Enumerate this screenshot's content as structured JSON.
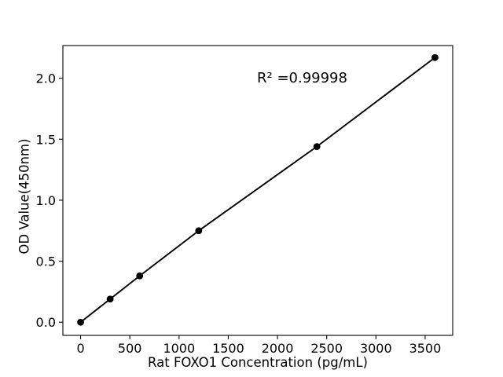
{
  "figure": {
    "background": "#ffffff",
    "line_color": "#000000",
    "marker_color": "#000000",
    "text_color": "#000000"
  },
  "chart_data": {
    "type": "line",
    "markers": true,
    "title": "",
    "xlabel": "Rat FOXO1 Concentration (pg/mL)",
    "ylabel": "OD Value(450nm)",
    "annotation": "R² =0.99998",
    "x": [
      0,
      300,
      600,
      1200,
      2400,
      3600
    ],
    "y": [
      0.0,
      0.19,
      0.38,
      0.75,
      1.44,
      2.17
    ],
    "xlim": [
      -180,
      3780
    ],
    "ylim": [
      -0.108,
      2.268
    ],
    "xticks": [
      0,
      500,
      1000,
      1500,
      2000,
      2500,
      3000,
      3500
    ],
    "xtick_labels": [
      "0",
      "500",
      "1000",
      "1500",
      "2000",
      "2500",
      "3000",
      "3500"
    ],
    "yticks": [
      0.0,
      0.5,
      1.0,
      1.5,
      2.0
    ],
    "ytick_labels": [
      "0.0",
      "0.5",
      "1.0",
      "1.5",
      "2.0"
    ],
    "grid": false,
    "legend": "none"
  }
}
